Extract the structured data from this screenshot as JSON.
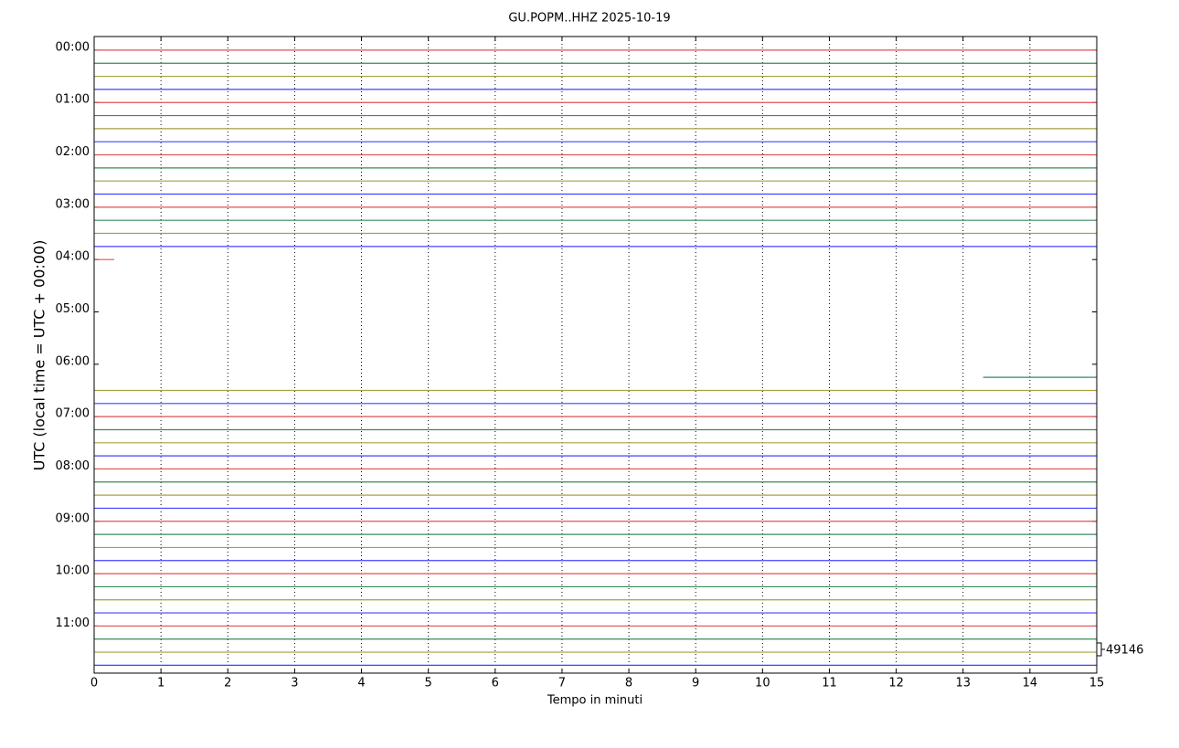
{
  "chart_data": {
    "type": "dayplot",
    "title": "GU.POPM..HHZ 2025-10-19",
    "x_label": "Tempo in minuti",
    "y_label": "UTC (local time = UTC + 00:00)",
    "scale_label": "49146",
    "xlim": [
      0,
      15
    ],
    "xticks": [
      0,
      1,
      2,
      3,
      4,
      5,
      6,
      7,
      8,
      9,
      10,
      11,
      12,
      13,
      14,
      15
    ],
    "ylim": [
      -0.26,
      11.9
    ],
    "y_inverted": true,
    "yticks": [
      {
        "value": 0,
        "label": "00:00"
      },
      {
        "value": 1,
        "label": "01:00"
      },
      {
        "value": 2,
        "label": "02:00"
      },
      {
        "value": 3,
        "label": "03:00"
      },
      {
        "value": 4,
        "label": "04:00"
      },
      {
        "value": 5,
        "label": "05:00"
      },
      {
        "value": 6,
        "label": "06:00"
      },
      {
        "value": 7,
        "label": "07:00"
      },
      {
        "value": 8,
        "label": "08:00"
      },
      {
        "value": 9,
        "label": "09:00"
      },
      {
        "value": 10,
        "label": "10:00"
      },
      {
        "value": 11,
        "label": "11:00"
      }
    ],
    "grid": true,
    "colors": [
      "#e05050",
      "#3a8a5a",
      "#a8a040",
      "#4040ff"
    ],
    "traces": [
      {
        "offset": 0,
        "x": [
          0,
          15
        ]
      },
      {
        "offset": 0.25,
        "x": [
          0,
          15
        ]
      },
      {
        "offset": 0.5,
        "x": [
          0,
          15
        ]
      },
      {
        "offset": 0.75,
        "x": [
          0,
          15
        ]
      },
      {
        "offset": 1,
        "x": [
          0,
          15
        ]
      },
      {
        "offset": 1.25,
        "x": [
          0,
          15
        ]
      },
      {
        "offset": 1.5,
        "x": [
          0,
          15
        ]
      },
      {
        "offset": 1.75,
        "x": [
          0,
          15
        ]
      },
      {
        "offset": 2,
        "x": [
          0,
          15
        ]
      },
      {
        "offset": 2.25,
        "x": [
          0,
          15
        ]
      },
      {
        "offset": 2.5,
        "x": [
          0,
          15
        ]
      },
      {
        "offset": 2.75,
        "x": [
          0,
          15
        ]
      },
      {
        "offset": 3,
        "x": [
          0,
          15
        ]
      },
      {
        "offset": 3.25,
        "x": [
          0,
          15
        ]
      },
      {
        "offset": 3.5,
        "x": [
          0,
          15
        ]
      },
      {
        "offset": 3.75,
        "x": [
          0,
          15
        ]
      },
      {
        "offset": 4,
        "x": [
          0,
          0.3
        ]
      },
      {
        "offset": 6.25,
        "x": [
          13.3,
          15
        ]
      },
      {
        "offset": 6.5,
        "x": [
          0,
          15
        ]
      },
      {
        "offset": 6.75,
        "x": [
          0,
          15
        ]
      },
      {
        "offset": 7,
        "x": [
          0,
          15
        ]
      },
      {
        "offset": 7.25,
        "x": [
          0,
          15
        ]
      },
      {
        "offset": 7.5,
        "x": [
          0,
          15
        ]
      },
      {
        "offset": 7.75,
        "x": [
          0,
          15
        ]
      },
      {
        "offset": 8,
        "x": [
          0,
          15
        ]
      },
      {
        "offset": 8.25,
        "x": [
          0,
          15
        ]
      },
      {
        "offset": 8.5,
        "x": [
          0,
          15
        ]
      },
      {
        "offset": 8.75,
        "x": [
          0,
          15
        ]
      },
      {
        "offset": 9,
        "x": [
          0,
          15
        ]
      },
      {
        "offset": 9.25,
        "x": [
          0,
          15
        ]
      },
      {
        "offset": 9.5,
        "x": [
          0,
          15
        ]
      },
      {
        "offset": 9.75,
        "x": [
          0,
          15
        ]
      },
      {
        "offset": 10,
        "x": [
          0,
          15
        ]
      },
      {
        "offset": 10.25,
        "x": [
          0,
          15
        ]
      },
      {
        "offset": 10.5,
        "x": [
          0,
          15
        ]
      },
      {
        "offset": 10.75,
        "x": [
          0,
          15
        ]
      },
      {
        "offset": 11,
        "x": [
          0,
          15
        ]
      },
      {
        "offset": 11.25,
        "x": [
          0,
          15
        ]
      },
      {
        "offset": 11.5,
        "x": [
          0,
          15
        ]
      },
      {
        "offset": 11.75,
        "x": [
          0,
          15
        ]
      }
    ]
  }
}
